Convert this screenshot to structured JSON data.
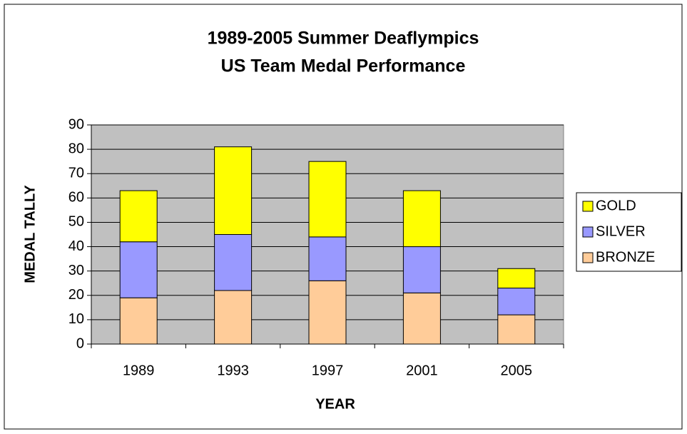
{
  "chart_data": {
    "type": "stacked_bar",
    "title": [
      "1989-2005 Summer Deaflympics",
      "US Team Medal Performance"
    ],
    "x_label": "YEAR",
    "y_label": "MEDAL TALLY",
    "categories": [
      "1989",
      "1993",
      "1997",
      "2001",
      "2005"
    ],
    "series": [
      {
        "name": "BRONZE",
        "color": "#ffcc99",
        "values": [
          19,
          22,
          26,
          21,
          12
        ]
      },
      {
        "name": "SILVER",
        "color": "#9999ff",
        "values": [
          23,
          23,
          18,
          19,
          11
        ]
      },
      {
        "name": "GOLD",
        "color": "#ffff00",
        "values": [
          21,
          36,
          31,
          23,
          8
        ]
      }
    ],
    "ylim": [
      0,
      90
    ],
    "yticks": [
      0,
      10,
      20,
      30,
      40,
      50,
      60,
      70,
      80,
      90
    ],
    "grid": true,
    "legend": "right",
    "plot_background": "#c0c0c0"
  }
}
